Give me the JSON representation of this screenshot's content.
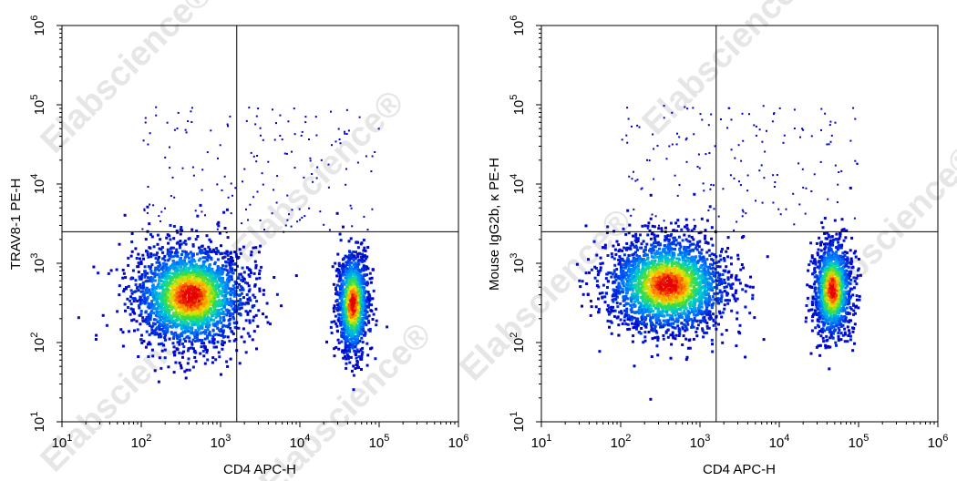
{
  "watermark": "Elabscience®",
  "chart_data": [
    {
      "type": "scatter",
      "title": "",
      "xlabel": "CD4 APC-H",
      "ylabel": "TRAV8-1 PE-H",
      "x_scale": "log",
      "y_scale": "log",
      "xlim": [
        10,
        1000000
      ],
      "ylim": [
        10,
        1000000
      ],
      "x_ticks": [
        1,
        2,
        3,
        4,
        5,
        6
      ],
      "y_ticks": [
        1,
        2,
        3,
        4,
        5,
        6
      ],
      "gate": {
        "x": 1600,
        "y": 2500
      },
      "populations": [
        {
          "name": "",
          "center": [
            400,
            400
          ],
          "spread": [
            0.35,
            0.32
          ],
          "count": 2600
        },
        {
          "name": "",
          "center": [
            45000,
            320
          ],
          "spread": [
            0.1,
            0.32
          ],
          "count": 1300
        }
      ]
    },
    {
      "type": "scatter",
      "title": "",
      "xlabel": "CD4 APC-H",
      "ylabel": "Mouse IgG2b, κ PE-H",
      "x_scale": "log",
      "y_scale": "log",
      "xlim": [
        10,
        1000000
      ],
      "ylim": [
        10,
        1000000
      ],
      "x_ticks": [
        1,
        2,
        3,
        4,
        5,
        6
      ],
      "y_ticks": [
        1,
        2,
        3,
        4,
        5,
        6
      ],
      "gate": {
        "x": 1600,
        "y": 2500
      },
      "populations": [
        {
          "name": "",
          "center": [
            380,
            550
          ],
          "spread": [
            0.38,
            0.3
          ],
          "count": 2600
        },
        {
          "name": "",
          "center": [
            45000,
            480
          ],
          "spread": [
            0.12,
            0.3
          ],
          "count": 1300
        }
      ]
    }
  ]
}
